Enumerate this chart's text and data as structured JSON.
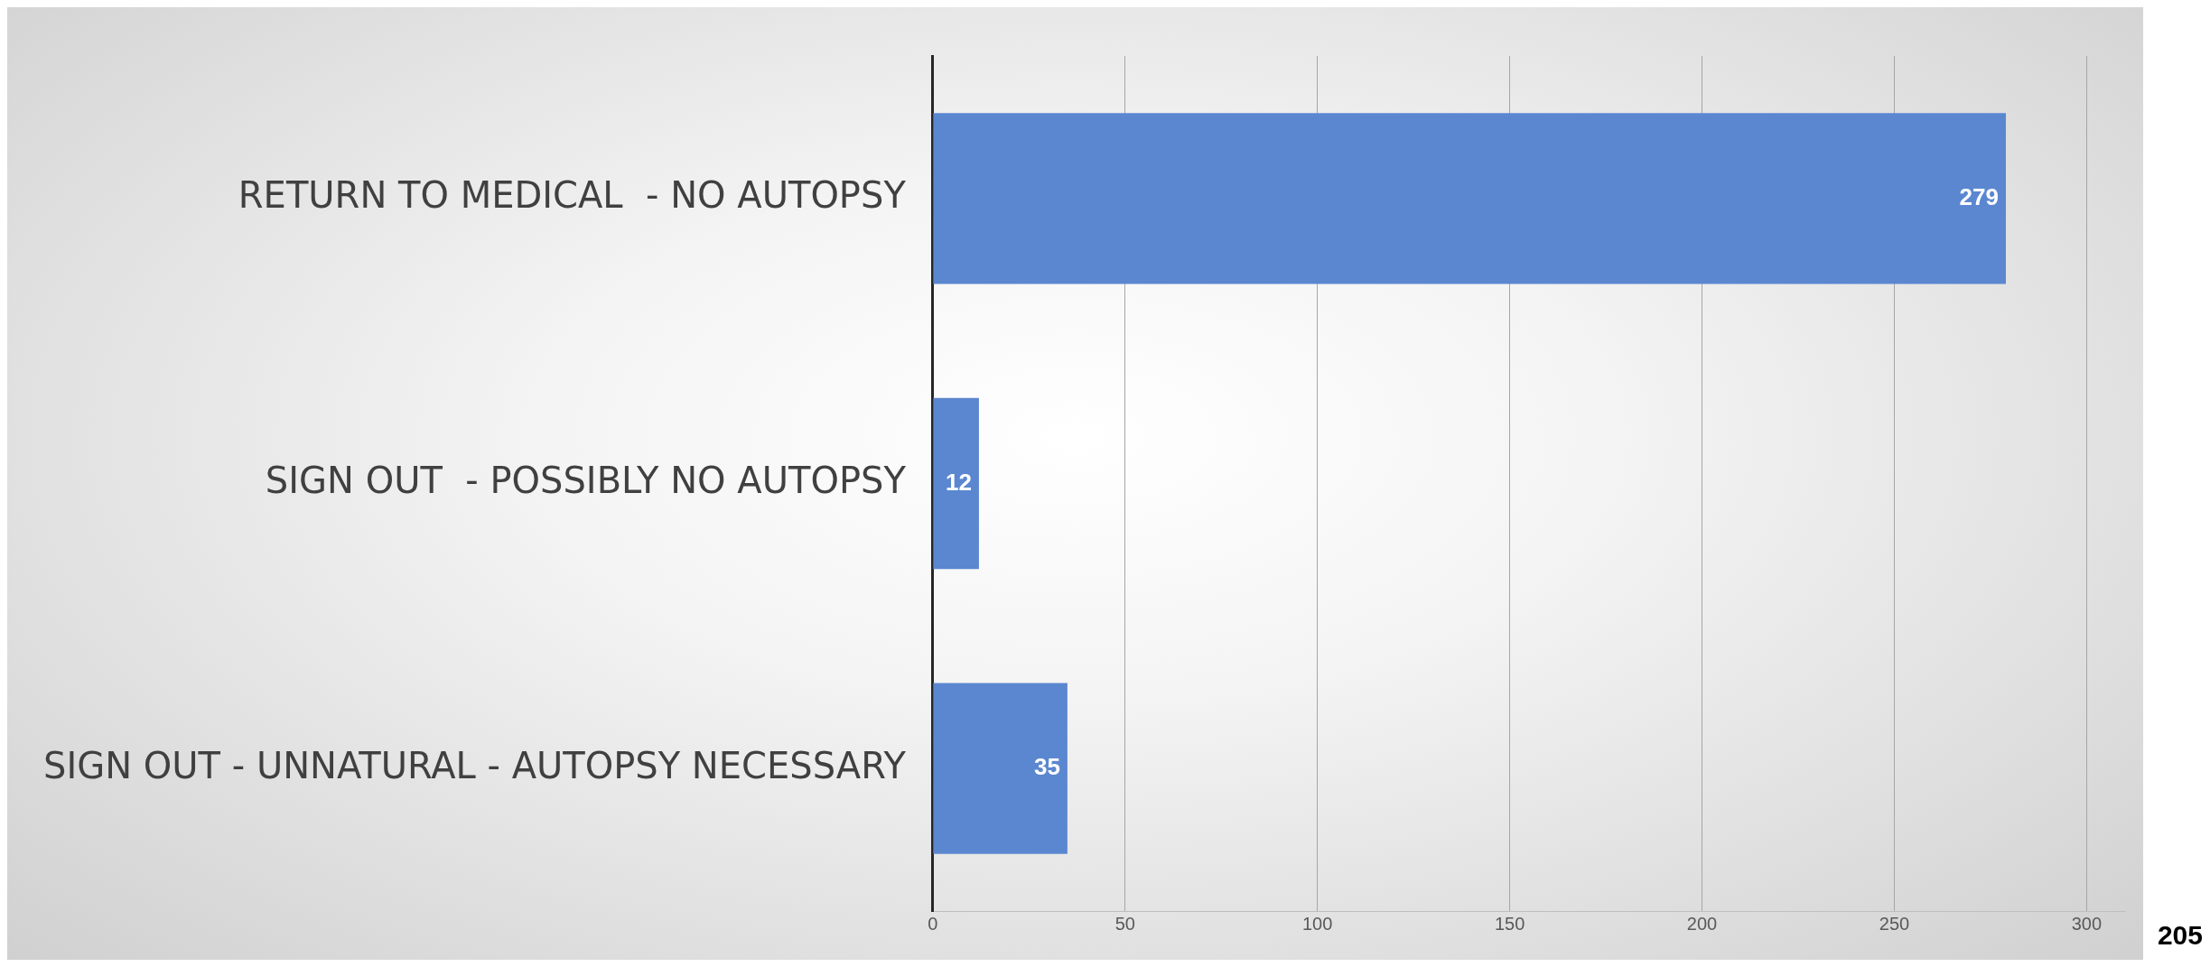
{
  "chart_data": {
    "type": "bar",
    "orientation": "horizontal",
    "categories": [
      "RETURN TO MEDICAL  - NO AUTOPSY",
      "SIGN OUT  - POSSIBLY NO AUTOPSY",
      "SIGN OUT - UNNATURAL - AUTOPSY NECESSARY"
    ],
    "values": [
      279,
      12,
      35
    ],
    "color": "#5b87d0",
    "data_labels": true,
    "xlim": [
      0,
      310
    ],
    "xticks": [
      0,
      50,
      100,
      150,
      200,
      250,
      300
    ],
    "grid": "x",
    "legend": false,
    "annotations": [
      "205"
    ]
  }
}
